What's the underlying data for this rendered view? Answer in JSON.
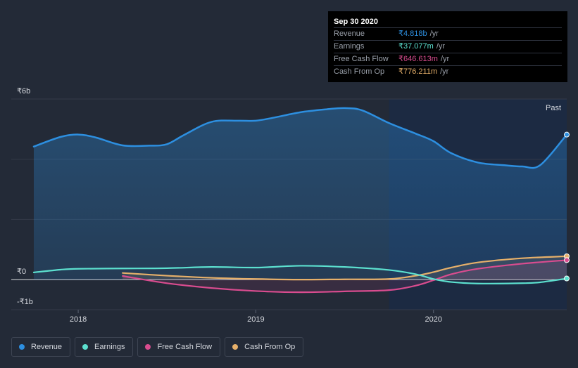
{
  "tooltip": {
    "date": "Sep 30 2020",
    "rows": [
      {
        "label": "Revenue",
        "value": "₹4.818b",
        "unit": "/yr",
        "color": "#2d8fe0"
      },
      {
        "label": "Earnings",
        "value": "₹37.077m",
        "unit": "/yr",
        "color": "#5ce0cf"
      },
      {
        "label": "Free Cash Flow",
        "value": "₹646.613m",
        "unit": "/yr",
        "color": "#d94c8f"
      },
      {
        "label": "Cash From Op",
        "value": "₹776.211m",
        "unit": "/yr",
        "color": "#e6b06a"
      }
    ]
  },
  "legend": [
    {
      "label": "Revenue",
      "color": "#2d8fe0"
    },
    {
      "label": "Earnings",
      "color": "#5ce0cf"
    },
    {
      "label": "Free Cash Flow",
      "color": "#d94c8f"
    },
    {
      "label": "Cash From Op",
      "color": "#e6b06a"
    }
  ],
  "chart_data": {
    "type": "area",
    "past_label": "Past",
    "y_ticks": [
      {
        "value": 6,
        "label": "₹6b"
      },
      {
        "value": 0,
        "label": "₹0"
      },
      {
        "value": -1,
        "label": "-₹1b"
      }
    ],
    "ylim": [
      -1,
      6
    ],
    "x_ticks": [
      {
        "value": 2018.0,
        "label": "2018"
      },
      {
        "value": 2019.0,
        "label": "2019"
      },
      {
        "value": 2020.0,
        "label": "2020"
      }
    ],
    "xlim": [
      2017.63,
      2020.75
    ],
    "past_region_start": 2019.75,
    "series": [
      {
        "name": "Revenue",
        "color": "#2d8fe0",
        "filled": true,
        "points": [
          [
            2017.75,
            4.42
          ],
          [
            2017.9,
            4.74
          ],
          [
            2018.0,
            4.82
          ],
          [
            2018.1,
            4.72
          ],
          [
            2018.25,
            4.46
          ],
          [
            2018.4,
            4.45
          ],
          [
            2018.5,
            4.5
          ],
          [
            2018.6,
            4.82
          ],
          [
            2018.75,
            5.24
          ],
          [
            2018.9,
            5.28
          ],
          [
            2019.0,
            5.28
          ],
          [
            2019.1,
            5.38
          ],
          [
            2019.25,
            5.56
          ],
          [
            2019.4,
            5.66
          ],
          [
            2019.5,
            5.7
          ],
          [
            2019.6,
            5.62
          ],
          [
            2019.75,
            5.2
          ],
          [
            2019.9,
            4.85
          ],
          [
            2020.0,
            4.6
          ],
          [
            2020.1,
            4.2
          ],
          [
            2020.25,
            3.89
          ],
          [
            2020.4,
            3.8
          ],
          [
            2020.5,
            3.76
          ],
          [
            2020.6,
            3.8
          ],
          [
            2020.75,
            4.818
          ]
        ]
      },
      {
        "name": "Earnings",
        "color": "#5ce0cf",
        "filled": false,
        "points": [
          [
            2017.75,
            0.24
          ],
          [
            2017.9,
            0.33
          ],
          [
            2018.0,
            0.36
          ],
          [
            2018.25,
            0.37
          ],
          [
            2018.5,
            0.38
          ],
          [
            2018.75,
            0.42
          ],
          [
            2019.0,
            0.4
          ],
          [
            2019.25,
            0.46
          ],
          [
            2019.5,
            0.42
          ],
          [
            2019.75,
            0.32
          ],
          [
            2019.9,
            0.18
          ],
          [
            2020.0,
            0.02
          ],
          [
            2020.1,
            -0.08
          ],
          [
            2020.25,
            -0.13
          ],
          [
            2020.5,
            -0.12
          ],
          [
            2020.6,
            -0.09
          ],
          [
            2020.75,
            0.037
          ]
        ]
      },
      {
        "name": "Free Cash Flow",
        "color": "#d94c8f",
        "filled": true,
        "points": [
          [
            2018.25,
            0.12
          ],
          [
            2018.5,
            -0.12
          ],
          [
            2018.75,
            -0.28
          ],
          [
            2019.0,
            -0.38
          ],
          [
            2019.25,
            -0.42
          ],
          [
            2019.5,
            -0.39
          ],
          [
            2019.75,
            -0.35
          ],
          [
            2019.9,
            -0.2
          ],
          [
            2020.0,
            -0.02
          ],
          [
            2020.1,
            0.18
          ],
          [
            2020.25,
            0.36
          ],
          [
            2020.5,
            0.53
          ],
          [
            2020.75,
            0.647
          ]
        ]
      },
      {
        "name": "Cash From Op",
        "color": "#e6b06a",
        "filled": true,
        "points": [
          [
            2018.25,
            0.22
          ],
          [
            2018.5,
            0.13
          ],
          [
            2018.75,
            0.06
          ],
          [
            2019.0,
            0.02
          ],
          [
            2019.25,
            0.0
          ],
          [
            2019.5,
            0.01
          ],
          [
            2019.75,
            0.02
          ],
          [
            2019.9,
            0.13
          ],
          [
            2020.0,
            0.25
          ],
          [
            2020.1,
            0.4
          ],
          [
            2020.25,
            0.57
          ],
          [
            2020.5,
            0.71
          ],
          [
            2020.75,
            0.776
          ]
        ]
      }
    ]
  }
}
